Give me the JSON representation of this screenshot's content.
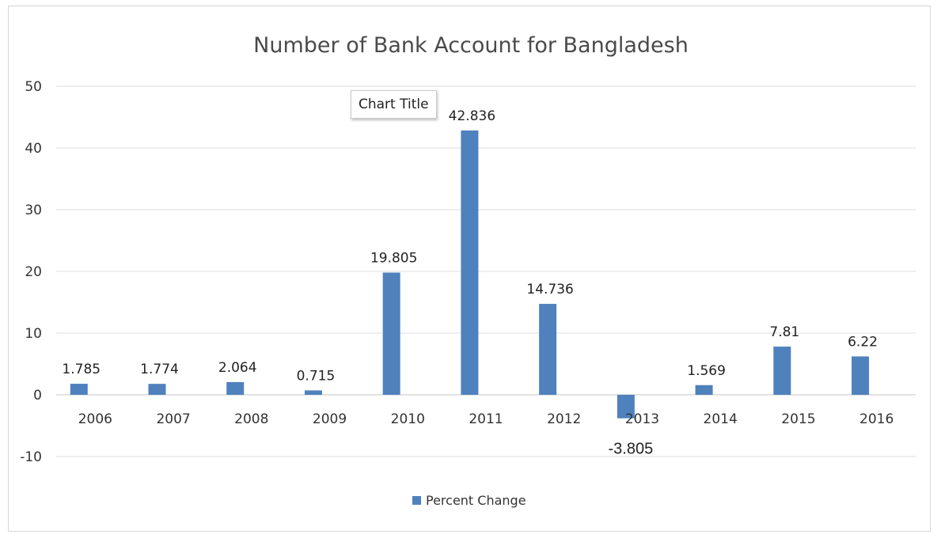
{
  "chart_data": {
    "type": "bar",
    "title": "Number of Bank Account for Bangladesh",
    "categories": [
      "2006",
      "2007",
      "2008",
      "2009",
      "2010",
      "2011",
      "2012",
      "2013",
      "2014",
      "2015",
      "2016"
    ],
    "series": [
      {
        "name": "Percent Change",
        "color": "#4f81bd",
        "values": [
          1.785,
          1.774,
          2.064,
          0.715,
          19.805,
          42.836,
          14.736,
          -3.805,
          1.569,
          7.81,
          6.22
        ],
        "labels": [
          "1.785",
          "1.774",
          "2.064",
          "0.715",
          "19.805",
          "42.836",
          "14.736",
          "-3.805",
          "1.569",
          "7.81",
          "6.22"
        ]
      }
    ],
    "ylim": [
      -10,
      50
    ],
    "yticks": [
      "-10",
      "0",
      "10",
      "20",
      "30",
      "40",
      "50"
    ],
    "xlabel": "",
    "ylabel": "",
    "grid": true,
    "legend_position": "bottom"
  },
  "tooltip": {
    "text": "Chart Title"
  }
}
